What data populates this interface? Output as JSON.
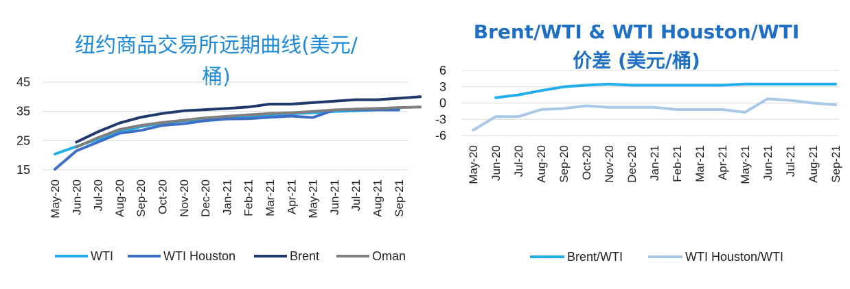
{
  "chart_data": [
    {
      "type": "line",
      "title": "纽约商品交易所远期曲线(美元/桶)",
      "title_lines": [
        "纽约商品交易所远期曲线(美元/",
        "桶)"
      ],
      "x": [
        "May-20",
        "Jun-20",
        "Jul-20",
        "Aug-20",
        "Sep-20",
        "Oct-20",
        "Nov-20",
        "Dec-20",
        "Jan-21",
        "Feb-21",
        "Mar-21",
        "Apr-21",
        "May-21",
        "Jun-21",
        "Jul-21",
        "Aug-21",
        "Sep-21"
      ],
      "yticks": [
        15,
        25,
        35,
        45
      ],
      "ylim": [
        15,
        45
      ],
      "grid": true,
      "legend_position": "bottom",
      "series": [
        {
          "name": "WTI",
          "color": "#22aee8",
          "values": [
            20.4,
            23.0,
            25.5,
            28.0,
            29.8,
            31.0,
            31.8,
            32.5,
            33.0,
            33.4,
            33.8,
            34.2,
            34.5,
            35.0,
            35.2,
            35.5,
            35.7
          ]
        },
        {
          "name": "WTI Houston",
          "color": "#3e6fc6",
          "values": [
            15.2,
            21.5,
            24.5,
            27.5,
            28.5,
            30.2,
            30.8,
            31.8,
            32.4,
            32.5,
            33.0,
            33.4,
            32.9,
            35.5,
            35.5,
            35.5,
            35.5
          ]
        },
        {
          "name": "Brent",
          "color": "#1f3a6b",
          "values": null,
          "values_from_index_1": [
            24.5,
            28.0,
            31.0,
            33.0,
            34.3,
            35.2,
            35.6,
            36.0,
            36.5,
            37.5,
            37.5,
            38.0,
            38.5,
            39.0,
            39.0,
            39.5,
            40.0
          ]
        },
        {
          "name": "Oman",
          "color": "#7f7f7f",
          "values": null,
          "values_from_index_1": [
            22.8,
            26.0,
            28.8,
            30.2,
            31.2,
            32.0,
            32.8,
            33.3,
            33.8,
            34.3,
            34.5,
            35.0,
            35.5,
            35.8,
            36.0,
            36.3,
            36.5
          ]
        }
      ]
    },
    {
      "type": "line",
      "title": "Brent/WTI & WTI Houston/WTI 价差 (美元/桶)",
      "title_lines": [
        "Brent/WTI & WTI Houston/WTI",
        "价差 (美元/桶)"
      ],
      "x": [
        "May-20",
        "Jun-20",
        "Jul-20",
        "Aug-20",
        "Sep-20",
        "Oct-20",
        "Nov-20",
        "Dec-20",
        "Jan-21",
        "Feb-21",
        "Mar-21",
        "Apr-21",
        "May-21",
        "Jun-21",
        "Jul-21",
        "Aug-21",
        "Sep-21"
      ],
      "yticks": [
        6,
        3,
        0,
        -3,
        -6
      ],
      "ylim": [
        -6,
        6
      ],
      "grid": true,
      "legend_position": "bottom",
      "series": [
        {
          "name": "Brent/WTI",
          "color": "#22aee8",
          "values": [
            null,
            1.0,
            1.5,
            2.3,
            3.0,
            3.3,
            3.5,
            3.3,
            3.3,
            3.3,
            3.3,
            3.3,
            3.5,
            3.5,
            3.5,
            3.5,
            3.5
          ]
        },
        {
          "name": "WTI Houston/WTI",
          "color": "#a9c8e8",
          "values": [
            -5.0,
            -2.5,
            -2.5,
            -1.2,
            -1.0,
            -0.5,
            -0.8,
            -0.8,
            -0.8,
            -1.2,
            -1.2,
            -1.2,
            -1.7,
            0.8,
            0.5,
            0.0,
            -0.3
          ]
        }
      ]
    }
  ]
}
